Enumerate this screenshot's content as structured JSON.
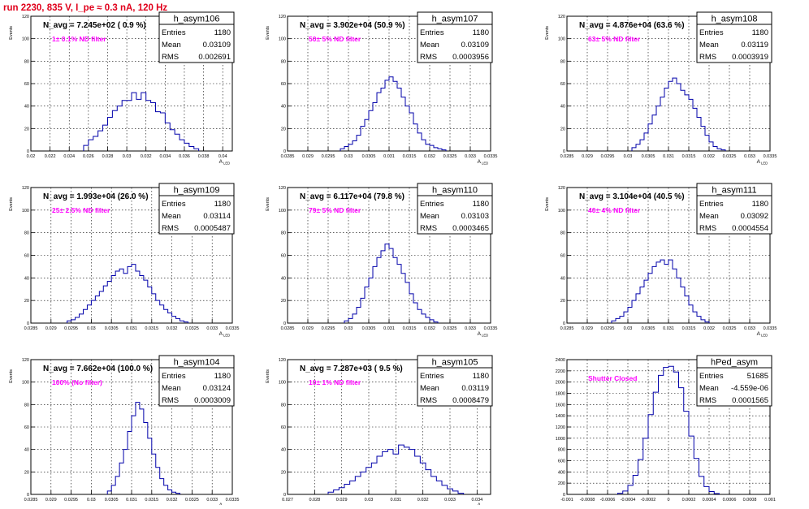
{
  "page_title": "run 2230,   835 V, I_pe ≈ 0.3 nA, 120 Hz",
  "colors": {
    "title": "#e0001b",
    "annotation": "#ff00ff",
    "hist": "#0000aa",
    "text": "#000000"
  },
  "stats_labels": {
    "entries": "Entries",
    "mean": "Mean",
    "rms": "RMS"
  },
  "chart_data": [
    {
      "type": "histogram",
      "name": "h_asym106",
      "header": "N_avg = 7.245e+02 ( 0.9 %)",
      "annotation": "1± 0.1% ND filter",
      "stats": {
        "entries": "1180",
        "mean": "0.03109",
        "rms": "0.002691"
      },
      "ylabel": "Events",
      "xlabel": "A_LED",
      "xlim": [
        0.02,
        0.041
      ],
      "ylim": [
        0,
        120
      ],
      "yticks": [
        0,
        20,
        40,
        60,
        80,
        100,
        120
      ],
      "ytick_labels": [
        "0",
        "20",
        "40",
        "60",
        "80",
        "100",
        "120"
      ],
      "xticks": [
        0.02,
        0.022,
        0.024,
        0.026,
        0.028,
        0.03,
        0.032,
        0.034,
        0.036,
        0.038,
        0.04
      ],
      "xtick_labels": [
        "0.02",
        "0.022",
        "0.024",
        "0.026",
        "0.028",
        "0.03",
        "0.032",
        "0.034",
        "0.036",
        "0.038",
        "0.04"
      ],
      "x_edges": [
        0.0255,
        0.026,
        0.0265,
        0.027,
        0.0275,
        0.028,
        0.0285,
        0.029,
        0.0295,
        0.03,
        0.0305,
        0.031,
        0.0315,
        0.032,
        0.0325,
        0.033,
        0.0335,
        0.034,
        0.0345,
        0.035,
        0.0355,
        0.036,
        0.0365,
        0.037,
        0.0375
      ],
      "counts": [
        5,
        10,
        13,
        18,
        23,
        30,
        36,
        40,
        45,
        45,
        52,
        46,
        52,
        45,
        43,
        35,
        34,
        25,
        19,
        15,
        10,
        7,
        4,
        2
      ]
    },
    {
      "type": "histogram",
      "name": "h_asym107",
      "header": "N_avg = 3.902e+04 (50.9 %)",
      "annotation": "50± 5% ND filter",
      "stats": {
        "entries": "1180",
        "mean": "0.03109",
        "rms": "0.0003956"
      },
      "ylabel": "Events",
      "xlabel": "A_LED",
      "xlim": [
        0.0285,
        0.0335
      ],
      "ylim": [
        0,
        120
      ],
      "yticks": [
        0,
        20,
        40,
        60,
        80,
        100,
        120
      ],
      "ytick_labels": [
        "0",
        "20",
        "40",
        "60",
        "80",
        "100",
        "120"
      ],
      "xticks": [
        0.0285,
        0.029,
        0.0295,
        0.03,
        0.0305,
        0.031,
        0.0315,
        0.032,
        0.0325,
        0.033,
        0.0335
      ],
      "xtick_labels": [
        "0.0285",
        "0.029",
        "0.0295",
        "0.03",
        "0.0305",
        "0.031",
        "0.0315",
        "0.032",
        "0.0325",
        "0.033",
        "0.0335"
      ],
      "x_edges": [
        0.0298,
        0.0299,
        0.03,
        0.0301,
        0.0302,
        0.0303,
        0.0304,
        0.0305,
        0.0306,
        0.0307,
        0.0308,
        0.0309,
        0.031,
        0.0311,
        0.0312,
        0.0313,
        0.0314,
        0.0315,
        0.0316,
        0.0317,
        0.0318,
        0.0319,
        0.032,
        0.0321,
        0.0322,
        0.0323,
        0.0324
      ],
      "counts": [
        2,
        4,
        6,
        9,
        14,
        22,
        28,
        36,
        43,
        52,
        56,
        63,
        66,
        62,
        56,
        48,
        40,
        34,
        24,
        16,
        10,
        6,
        5,
        3,
        2,
        1
      ]
    },
    {
      "type": "histogram",
      "name": "h_asym108",
      "header": "N_avg = 4.876e+04 (63.6 %)",
      "annotation": "63± 5% ND filter",
      "stats": {
        "entries": "1180",
        "mean": "0.03119",
        "rms": "0.0003919"
      },
      "ylabel": "Events",
      "xlabel": "A_LED",
      "xlim": [
        0.0285,
        0.0335
      ],
      "ylim": [
        0,
        120
      ],
      "yticks": [
        0,
        20,
        40,
        60,
        80,
        100,
        120
      ],
      "ytick_labels": [
        "0",
        "20",
        "40",
        "60",
        "80",
        "100",
        "120"
      ],
      "xticks": [
        0.0285,
        0.029,
        0.0295,
        0.03,
        0.0305,
        0.031,
        0.0315,
        0.032,
        0.0325,
        0.033,
        0.0335
      ],
      "xtick_labels": [
        "0.0285",
        "0.029",
        "0.0295",
        "0.03",
        "0.0305",
        "0.031",
        "0.0315",
        "0.032",
        "0.0325",
        "0.033",
        "0.0335"
      ],
      "x_edges": [
        0.0301,
        0.0302,
        0.0303,
        0.0304,
        0.0305,
        0.0306,
        0.0307,
        0.0308,
        0.0309,
        0.031,
        0.0311,
        0.0312,
        0.0313,
        0.0314,
        0.0315,
        0.0316,
        0.0317,
        0.0318,
        0.0319,
        0.032,
        0.0321,
        0.0322,
        0.0323,
        0.0324
      ],
      "counts": [
        3,
        6,
        10,
        16,
        24,
        32,
        40,
        48,
        56,
        62,
        65,
        60,
        54,
        50,
        46,
        38,
        30,
        22,
        14,
        8,
        4,
        2,
        1
      ]
    },
    {
      "type": "histogram",
      "name": "h_asym109",
      "header": "N_avg = 1.993e+04 (26.0 %)",
      "annotation": "25± 2.5% ND filter",
      "stats": {
        "entries": "1180",
        "mean": "0.03114",
        "rms": "0.0005487"
      },
      "ylabel": "Events",
      "xlabel": "A_LED",
      "xlim": [
        0.0285,
        0.0335
      ],
      "ylim": [
        0,
        120
      ],
      "yticks": [
        0,
        20,
        40,
        60,
        80,
        100,
        120
      ],
      "ytick_labels": [
        "0",
        "20",
        "40",
        "60",
        "80",
        "100",
        "120"
      ],
      "xticks": [
        0.0285,
        0.029,
        0.0295,
        0.03,
        0.0305,
        0.031,
        0.0315,
        0.032,
        0.0325,
        0.033,
        0.0335
      ],
      "xtick_labels": [
        "0.0285",
        "0.029",
        "0.0295",
        "0.03",
        "0.0305",
        "0.031",
        "0.0315",
        "0.032",
        "0.0325",
        "0.033",
        "0.0335"
      ],
      "x_edges": [
        0.0294,
        0.0295,
        0.0296,
        0.0297,
        0.0298,
        0.0299,
        0.03,
        0.0301,
        0.0302,
        0.0303,
        0.0304,
        0.0305,
        0.0306,
        0.0307,
        0.0308,
        0.0309,
        0.031,
        0.0311,
        0.0312,
        0.0313,
        0.0314,
        0.0315,
        0.0316,
        0.0317,
        0.0318,
        0.0319,
        0.032,
        0.0321,
        0.0322,
        0.0323,
        0.0324
      ],
      "counts": [
        2,
        3,
        5,
        8,
        12,
        16,
        20,
        24,
        28,
        33,
        37,
        42,
        46,
        48,
        44,
        50,
        52,
        46,
        42,
        38,
        32,
        26,
        20,
        16,
        12,
        9,
        6,
        4,
        2,
        1
      ]
    },
    {
      "type": "histogram",
      "name": "h_asym110",
      "header": "N_avg = 6.117e+04 (79.8 %)",
      "annotation": "79± 5% ND filter",
      "stats": {
        "entries": "1180",
        "mean": "0.03103",
        "rms": "0.0003465"
      },
      "ylabel": "Events",
      "xlabel": "A_LED",
      "xlim": [
        0.0285,
        0.0335
      ],
      "ylim": [
        0,
        120
      ],
      "yticks": [
        0,
        20,
        40,
        60,
        80,
        100,
        120
      ],
      "ytick_labels": [
        "0",
        "20",
        "40",
        "60",
        "80",
        "100",
        "120"
      ],
      "xticks": [
        0.0285,
        0.029,
        0.0295,
        0.03,
        0.0305,
        0.031,
        0.0315,
        0.032,
        0.0325,
        0.033,
        0.0335
      ],
      "xtick_labels": [
        "0.0285",
        "0.029",
        "0.0295",
        "0.03",
        "0.0305",
        "0.031",
        "0.0315",
        "0.032",
        "0.0325",
        "0.033",
        "0.0335"
      ],
      "x_edges": [
        0.0299,
        0.03,
        0.0301,
        0.0302,
        0.0303,
        0.0304,
        0.0305,
        0.0306,
        0.0307,
        0.0308,
        0.0309,
        0.031,
        0.0311,
        0.0312,
        0.0313,
        0.0314,
        0.0315,
        0.0316,
        0.0317,
        0.0318,
        0.0319,
        0.032,
        0.0321,
        0.0322
      ],
      "counts": [
        2,
        4,
        8,
        14,
        22,
        32,
        40,
        50,
        58,
        64,
        70,
        66,
        58,
        52,
        44,
        36,
        26,
        18,
        12,
        8,
        5,
        3,
        1
      ]
    },
    {
      "type": "histogram",
      "name": "h_asym111",
      "header": "N_avg = 3.104e+04 (40.5 %)",
      "annotation": "40± 4% ND filter",
      "stats": {
        "entries": "1180",
        "mean": "0.03092",
        "rms": "0.0004554"
      },
      "ylabel": "Events",
      "xlabel": "A_LED",
      "xlim": [
        0.0285,
        0.0335
      ],
      "ylim": [
        0,
        120
      ],
      "yticks": [
        0,
        20,
        40,
        60,
        80,
        100,
        120
      ],
      "ytick_labels": [
        "0",
        "20",
        "40",
        "60",
        "80",
        "100",
        "120"
      ],
      "xticks": [
        0.0285,
        0.029,
        0.0295,
        0.03,
        0.0305,
        0.031,
        0.0315,
        0.032,
        0.0325,
        0.033,
        0.0335
      ],
      "xtick_labels": [
        "0.0285",
        "0.029",
        "0.0295",
        "0.03",
        "0.0305",
        "0.031",
        "0.0315",
        "0.032",
        "0.0325",
        "0.033",
        "0.0335"
      ],
      "x_edges": [
        0.0296,
        0.0297,
        0.0298,
        0.0299,
        0.03,
        0.0301,
        0.0302,
        0.0303,
        0.0304,
        0.0305,
        0.0306,
        0.0307,
        0.0308,
        0.0309,
        0.031,
        0.0311,
        0.0312,
        0.0313,
        0.0314,
        0.0315,
        0.0316,
        0.0317,
        0.0318,
        0.0319,
        0.032
      ],
      "counts": [
        2,
        4,
        6,
        10,
        14,
        20,
        26,
        32,
        38,
        44,
        50,
        54,
        56,
        52,
        56,
        48,
        40,
        32,
        24,
        16,
        10,
        6,
        3,
        1
      ]
    },
    {
      "type": "histogram",
      "name": "h_asym104",
      "header": "N_avg = 7.662e+04 (100.0 %)",
      "annotation": "100% (No filter)",
      "stats": {
        "entries": "1180",
        "mean": "0.03124",
        "rms": "0.0003009"
      },
      "ylabel": "Events",
      "xlabel": "A_LED",
      "xlim": [
        0.0285,
        0.0335
      ],
      "ylim": [
        0,
        120
      ],
      "yticks": [
        0,
        20,
        40,
        60,
        80,
        100,
        120
      ],
      "ytick_labels": [
        "0",
        "20",
        "40",
        "60",
        "80",
        "100",
        "120"
      ],
      "xticks": [
        0.0285,
        0.029,
        0.0295,
        0.03,
        0.0305,
        0.031,
        0.0315,
        0.032,
        0.0325,
        0.033,
        0.0335
      ],
      "xtick_labels": [
        "0.0285",
        "0.029",
        "0.0295",
        "0.03",
        "0.0305",
        "0.031",
        "0.0315",
        "0.032",
        "0.0325",
        "0.033",
        "0.0335"
      ],
      "x_edges": [
        0.0304,
        0.0305,
        0.0306,
        0.0307,
        0.0308,
        0.0309,
        0.031,
        0.0311,
        0.0312,
        0.0313,
        0.0314,
        0.0315,
        0.0316,
        0.0317,
        0.0318,
        0.0319,
        0.032,
        0.0321,
        0.0322
      ],
      "counts": [
        3,
        8,
        16,
        28,
        40,
        56,
        70,
        82,
        76,
        64,
        50,
        36,
        24,
        14,
        8,
        4,
        2,
        1
      ]
    },
    {
      "type": "histogram",
      "name": "h_asym105",
      "header": "N_avg = 7.287e+03 ( 9.5 %)",
      "annotation": "10± 1% ND filter",
      "stats": {
        "entries": "1180",
        "mean": "0.03119",
        "rms": "0.0008479"
      },
      "ylabel": "Events",
      "xlabel": "A_LED",
      "xlim": [
        0.027,
        0.0345
      ],
      "ylim": [
        0,
        120
      ],
      "yticks": [
        0,
        20,
        40,
        60,
        80,
        100,
        120
      ],
      "ytick_labels": [
        "0",
        "20",
        "40",
        "60",
        "80",
        "100",
        "120"
      ],
      "xticks": [
        0.027,
        0.028,
        0.029,
        0.03,
        0.031,
        0.032,
        0.033,
        0.034
      ],
      "xtick_labels": [
        "0.027",
        "0.028",
        "0.029",
        "0.03",
        "0.031",
        "0.032",
        "0.033",
        "0.034"
      ],
      "x_edges": [
        0.0285,
        0.0287,
        0.0289,
        0.0291,
        0.0293,
        0.0295,
        0.0297,
        0.0299,
        0.0301,
        0.0303,
        0.0305,
        0.0307,
        0.0309,
        0.0311,
        0.0313,
        0.0315,
        0.0317,
        0.0319,
        0.0321,
        0.0323,
        0.0325,
        0.0327,
        0.0329,
        0.0331,
        0.0333,
        0.0335
      ],
      "counts": [
        2,
        4,
        6,
        9,
        12,
        16,
        20,
        24,
        28,
        34,
        38,
        40,
        36,
        44,
        42,
        40,
        34,
        28,
        22,
        16,
        12,
        8,
        5,
        3,
        1
      ]
    },
    {
      "type": "histogram",
      "name": "hPed_asym",
      "header": "",
      "annotation": "Shutter Closed",
      "stats": {
        "entries": "51685",
        "mean": "-4.559e-06",
        "rms": "0.0001565"
      },
      "ylabel": "",
      "xlabel": "",
      "xlim": [
        -0.001,
        0.001
      ],
      "ylim": [
        0,
        2400
      ],
      "yticks": [
        0,
        200,
        400,
        600,
        800,
        1000,
        1200,
        1400,
        1600,
        1800,
        2000,
        2200,
        2400
      ],
      "ytick_labels": [
        "0",
        "200",
        "400",
        "600",
        "800",
        "1000",
        "1200",
        "1400",
        "1600",
        "1800",
        "2000",
        "2200",
        "2400"
      ],
      "xticks": [
        -0.001,
        -0.0008,
        -0.0006,
        -0.0004,
        -0.0002,
        0,
        0.0002,
        0.0004,
        0.0006,
        0.0008,
        0.001
      ],
      "xtick_labels": [
        "-0.001",
        "-0.0008",
        "-0.0006",
        "-0.0004",
        "-0.0002",
        "0",
        "0.0002",
        "0.0004",
        "0.0006",
        "0.0008",
        "0.001"
      ],
      "x_edges": [
        -0.0005,
        -0.00045,
        -0.0004,
        -0.00035,
        -0.0003,
        -0.00025,
        -0.0002,
        -0.00015,
        -0.0001,
        -5e-05,
        0,
        5e-05,
        0.0001,
        0.00015,
        0.0002,
        0.00025,
        0.0003,
        0.00035,
        0.0004,
        0.00045,
        0.0005
      ],
      "counts": [
        20,
        60,
        160,
        340,
        620,
        1000,
        1420,
        1820,
        2120,
        2260,
        2280,
        2180,
        1900,
        1480,
        1040,
        640,
        320,
        140,
        50,
        15
      ]
    }
  ]
}
